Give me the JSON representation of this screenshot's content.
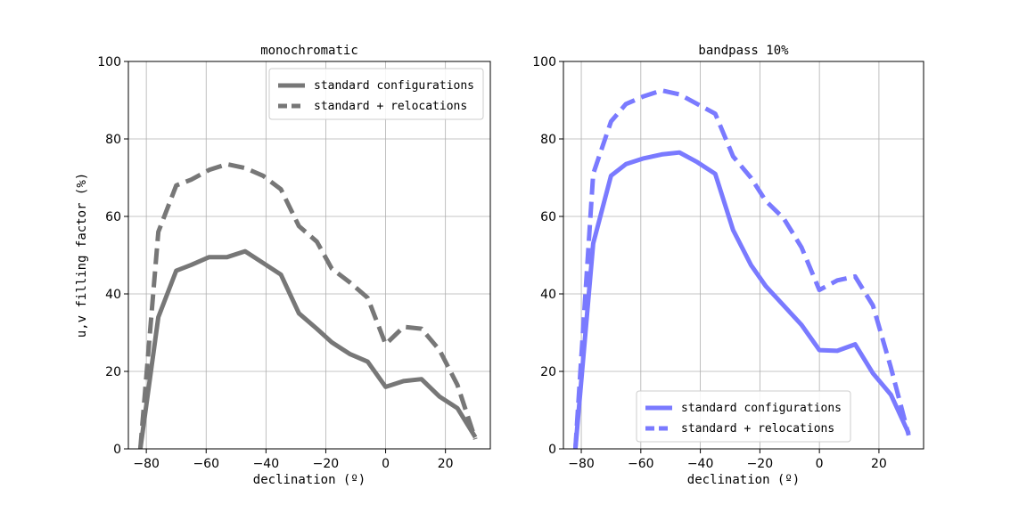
{
  "chart_data": [
    {
      "type": "line",
      "title": "monochromatic",
      "xlabel": "declination (º)",
      "ylabel": "u,v filling factor (%)",
      "xlim": [
        -86,
        35
      ],
      "ylim": [
        0,
        100
      ],
      "xticks": [
        -80,
        -60,
        -40,
        -20,
        0,
        20
      ],
      "yticks": [
        0,
        20,
        40,
        60,
        80,
        100
      ],
      "xtick_labels": [
        "−80",
        "−60",
        "−40",
        "−20",
        "0",
        "20"
      ],
      "ytick_labels": [
        "0",
        "20",
        "40",
        "60",
        "80",
        "100"
      ],
      "grid": true,
      "legend_position": "top-right",
      "color": "#777777",
      "series": [
        {
          "name": "standard configurations",
          "style": "solid",
          "x": [
            -82,
            -76,
            -70,
            -65,
            -59,
            -53,
            -47,
            -41,
            -35,
            -29,
            -23,
            -18,
            -12,
            -6,
            0,
            6,
            12,
            18,
            24,
            30
          ],
          "y": [
            0,
            34,
            46,
            47.5,
            49.5,
            49.5,
            51,
            48,
            45,
            35,
            31,
            27.5,
            24.5,
            22.5,
            16,
            17.5,
            18,
            13.5,
            10.5,
            3
          ]
        },
        {
          "name": "standard + relocations",
          "style": "dashed",
          "x": [
            -82,
            -76,
            -70,
            -65,
            -59,
            -53,
            -47,
            -41,
            -35,
            -29,
            -23,
            -18,
            -12,
            -6,
            0,
            6,
            12,
            18,
            24,
            30
          ],
          "y": [
            0,
            56,
            68,
            69.5,
            72,
            73.5,
            72.5,
            70.5,
            67,
            57.5,
            53.5,
            46.5,
            43,
            39,
            27,
            31.5,
            31,
            25.5,
            16.5,
            2.5
          ]
        }
      ]
    },
    {
      "type": "line",
      "title": "bandpass 10%",
      "xlabel": "declination (º)",
      "ylabel": "",
      "xlim": [
        -86,
        35
      ],
      "ylim": [
        0,
        100
      ],
      "xticks": [
        -80,
        -60,
        -40,
        -20,
        0,
        20
      ],
      "yticks": [
        0,
        20,
        40,
        60,
        80,
        100
      ],
      "xtick_labels": [
        "−80",
        "−60",
        "−40",
        "−20",
        "0",
        "20"
      ],
      "ytick_labels": [
        "0",
        "20",
        "40",
        "60",
        "80",
        "100"
      ],
      "grid": true,
      "legend_position": "bottom-center",
      "color": "#7a7aff",
      "series": [
        {
          "name": "standard configurations",
          "style": "solid",
          "x": [
            -82,
            -76,
            -70,
            -65,
            -59,
            -53,
            -47,
            -41,
            -35,
            -29,
            -23,
            -18,
            -12,
            -6,
            0,
            6,
            12,
            18,
            24,
            30
          ],
          "y": [
            0,
            53,
            70.5,
            73.5,
            75,
            76,
            76.5,
            74,
            71,
            56.5,
            47.5,
            42,
            37,
            32,
            25.5,
            25.3,
            27,
            19.5,
            14,
            4
          ]
        },
        {
          "name": "standard + relocations",
          "style": "dashed",
          "x": [
            -82,
            -76,
            -70,
            -65,
            -59,
            -53,
            -47,
            -41,
            -35,
            -29,
            -23,
            -18,
            -12,
            -6,
            0,
            6,
            12,
            18,
            24,
            30
          ],
          "y": [
            0,
            71,
            84.5,
            89,
            91,
            92.5,
            91.5,
            89,
            86.5,
            75.5,
            70,
            64,
            59.5,
            52,
            41,
            43.5,
            44.5,
            37,
            21,
            3.5
          ]
        }
      ]
    }
  ]
}
